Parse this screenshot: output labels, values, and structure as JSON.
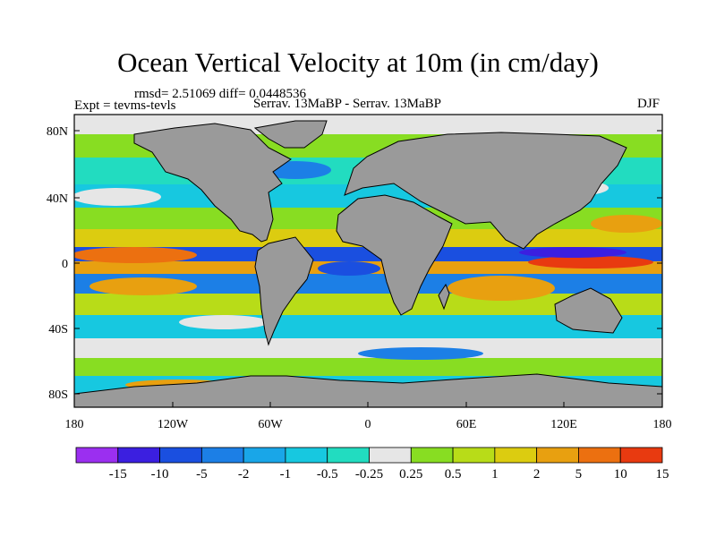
{
  "title": "Ocean Vertical Velocity at 10m (in cm/day)",
  "stats_line": "rmsd= 2.51069 diff= 0.0448536",
  "expt_line": "Expt = tevms-tevls",
  "compare_line": "Serrav.   13MaBP - Serrav.   13MaBP",
  "season": "DJF",
  "lat_ticks": [
    "80N",
    "40N",
    "0",
    "40S",
    "80S"
  ],
  "lon_ticks": [
    "180",
    "120W",
    "60W",
    "0",
    "60E",
    "120E",
    "180"
  ],
  "colorbar": {
    "labels": [
      "-15",
      "-10",
      "-5",
      "-2",
      "-1",
      "-0.5",
      "-0.25",
      "0.25",
      "0.5",
      "1",
      "2",
      "5",
      "10",
      "15"
    ],
    "colors": [
      "#9b2ff0",
      "#3b1fe0",
      "#1a4fe0",
      "#1c7fe6",
      "#19a6e8",
      "#17c8e0",
      "#22dcc0",
      "#e6e6e6",
      "#88dd22",
      "#b8dc18",
      "#dccc10",
      "#e8a010",
      "#ec7010",
      "#e83a10"
    ]
  },
  "colors": {
    "land": "#9a9a9a",
    "background": "#ffffff"
  }
}
